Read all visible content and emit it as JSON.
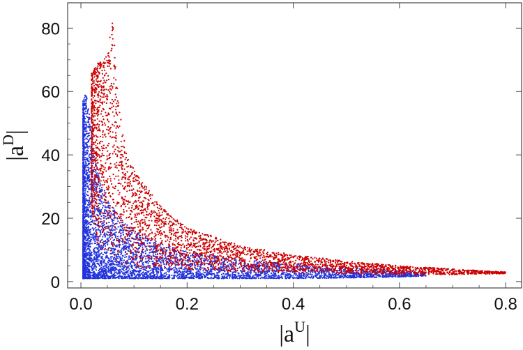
{
  "chart_data": {
    "type": "scatter",
    "title": "",
    "xlabel": {
      "base": "|a",
      "sup": "U",
      "close": "|"
    },
    "ylabel": {
      "base": "|a",
      "sup": "D",
      "close": "|"
    },
    "xlim": [
      -0.025,
      0.83
    ],
    "ylim": [
      -2,
      88
    ],
    "x_ticks": [
      "0.0",
      "0.2",
      "0.4",
      "0.6",
      "0.8"
    ],
    "y_ticks": [
      "0",
      "20",
      "40",
      "60",
      "80"
    ],
    "grid": false,
    "legend": "none",
    "series": [
      {
        "color": "#2233dd",
        "band_low": [
          [
            0.004,
            1.0
          ],
          [
            0.02,
            1.0
          ],
          [
            0.05,
            1.0
          ],
          [
            0.1,
            1.0
          ],
          [
            0.2,
            1.0
          ],
          [
            0.3,
            1.0
          ],
          [
            0.4,
            1.0
          ],
          [
            0.5,
            1.2
          ],
          [
            0.6,
            1.5
          ],
          [
            0.65,
            1.8
          ]
        ],
        "band_high": [
          [
            0.004,
            57
          ],
          [
            0.01,
            60
          ],
          [
            0.02,
            48
          ],
          [
            0.03,
            36
          ],
          [
            0.05,
            26
          ],
          [
            0.08,
            19
          ],
          [
            0.1,
            16
          ],
          [
            0.15,
            12
          ],
          [
            0.2,
            9.5
          ],
          [
            0.3,
            7
          ],
          [
            0.4,
            5.5
          ],
          [
            0.5,
            4.5
          ],
          [
            0.6,
            3.5
          ],
          [
            0.65,
            3.0
          ]
        ]
      },
      {
        "color": "#cc0000",
        "band_low": [
          [
            0.02,
            22
          ],
          [
            0.03,
            12
          ],
          [
            0.05,
            8
          ],
          [
            0.08,
            5
          ],
          [
            0.1,
            4.5
          ],
          [
            0.15,
            4
          ],
          [
            0.2,
            3.5
          ],
          [
            0.3,
            3
          ],
          [
            0.4,
            2.8
          ],
          [
            0.5,
            2.5
          ],
          [
            0.6,
            2.2
          ],
          [
            0.7,
            2.2
          ],
          [
            0.8,
            2.5
          ]
        ],
        "band_high": [
          [
            0.02,
            66
          ],
          [
            0.03,
            69
          ],
          [
            0.04,
            70
          ],
          [
            0.05,
            72
          ],
          [
            0.06,
            83
          ],
          [
            0.07,
            58
          ],
          [
            0.08,
            46
          ],
          [
            0.1,
            35
          ],
          [
            0.15,
            24
          ],
          [
            0.2,
            17
          ],
          [
            0.3,
            11.5
          ],
          [
            0.4,
            8.5
          ],
          [
            0.5,
            6.5
          ],
          [
            0.6,
            5
          ],
          [
            0.7,
            4
          ],
          [
            0.8,
            3
          ]
        ]
      }
    ]
  }
}
